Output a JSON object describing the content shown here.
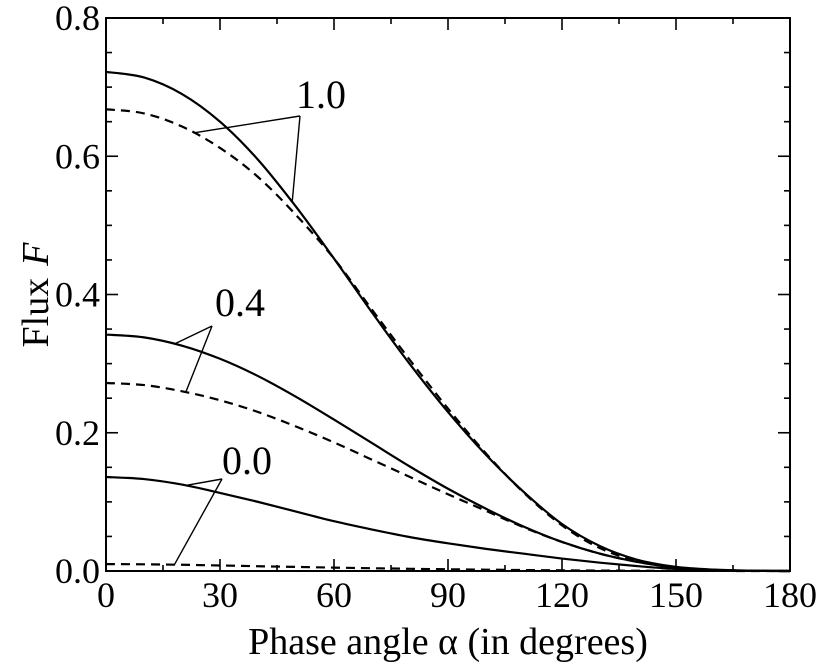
{
  "chart_data": {
    "type": "line",
    "title": "",
    "xlabel": "Phase angle α (in degrees)",
    "ylabel_main": "Flux",
    "ylabel_italic": "F",
    "xlim": [
      0,
      180
    ],
    "ylim": [
      0,
      0.8
    ],
    "x_ticks": [
      0,
      30,
      60,
      90,
      120,
      150,
      180
    ],
    "x_tick_labels": [
      "0",
      "30",
      "60",
      "90",
      "120",
      "150",
      "180"
    ],
    "y_ticks": [
      0,
      0.2,
      0.4,
      0.6,
      0.8
    ],
    "y_tick_labels": [
      "0.0",
      "0.2",
      "0.4",
      "0.6",
      "0.8"
    ],
    "grid": false,
    "legend": "none",
    "annotations": [
      {
        "text": "1.0",
        "series": [
          "solid-1.0",
          "dashed-1.0"
        ]
      },
      {
        "text": "0.4",
        "series": [
          "solid-0.4",
          "dashed-0.4"
        ]
      },
      {
        "text": "0.0",
        "series": [
          "solid-0.0",
          "dashed-0.0"
        ]
      }
    ],
    "x": [
      0,
      10,
      20,
      30,
      40,
      50,
      60,
      70,
      80,
      90,
      100,
      110,
      120,
      130,
      140,
      150,
      160,
      170,
      180
    ],
    "series": [
      {
        "id": "solid-1.0",
        "style": "solid",
        "values": [
          0.722,
          0.714,
          0.69,
          0.65,
          0.595,
          0.527,
          0.452,
          0.374,
          0.299,
          0.23,
          0.168,
          0.114,
          0.068,
          0.036,
          0.016,
          0.006,
          0.002,
          0.0005,
          0.0
        ]
      },
      {
        "id": "dashed-1.0",
        "style": "dashed",
        "values": [
          0.668,
          0.662,
          0.643,
          0.612,
          0.57,
          0.515,
          0.452,
          0.378,
          0.305,
          0.235,
          0.17,
          0.113,
          0.066,
          0.033,
          0.014,
          0.005,
          0.0015,
          0.0003,
          0.0
        ]
      },
      {
        "id": "solid-0.4",
        "style": "solid",
        "values": [
          0.342,
          0.338,
          0.326,
          0.307,
          0.282,
          0.252,
          0.219,
          0.185,
          0.151,
          0.119,
          0.09,
          0.064,
          0.042,
          0.025,
          0.013,
          0.005,
          0.0015,
          0.0003,
          0.0
        ]
      },
      {
        "id": "dashed-0.4",
        "style": "dashed",
        "values": [
          0.272,
          0.269,
          0.26,
          0.247,
          0.23,
          0.209,
          0.186,
          0.161,
          0.136,
          0.111,
          0.087,
          0.063,
          0.042,
          0.025,
          0.013,
          0.005,
          0.0015,
          0.0003,
          0.0
        ]
      },
      {
        "id": "solid-0.0",
        "style": "solid",
        "values": [
          0.136,
          0.133,
          0.125,
          0.113,
          0.1,
          0.086,
          0.072,
          0.06,
          0.049,
          0.04,
          0.032,
          0.025,
          0.018,
          0.012,
          0.007,
          0.003,
          0.001,
          0.0002,
          0.0
        ]
      },
      {
        "id": "dashed-0.0",
        "style": "dashed",
        "values": [
          0.01,
          0.0097,
          0.009,
          0.008,
          0.0069,
          0.0059,
          0.0049,
          0.004,
          0.0032,
          0.0025,
          0.0019,
          0.0014,
          0.001,
          0.0006,
          0.0004,
          0.0002,
          0.0001,
          0.0,
          0.0
        ]
      }
    ]
  }
}
